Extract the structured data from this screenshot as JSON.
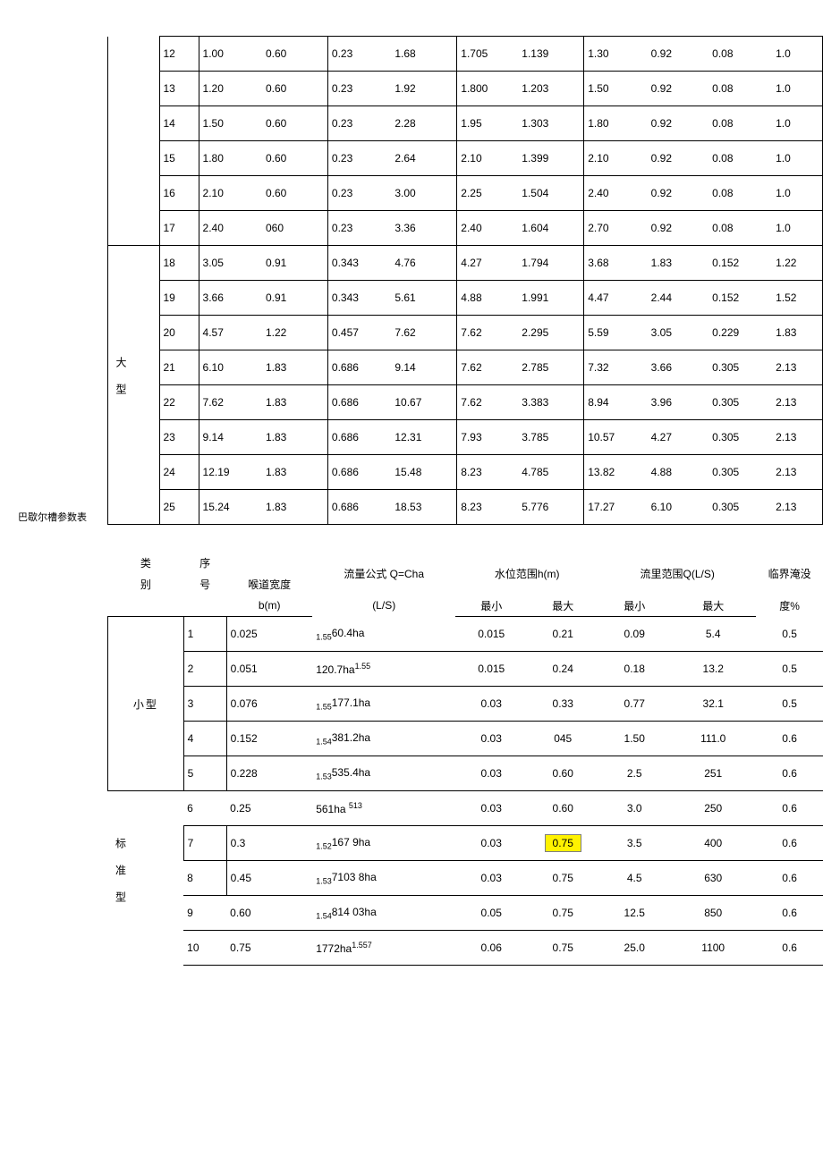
{
  "caption": "巴歇尔槽参数表",
  "table1": {
    "categories": [
      "",
      "大型"
    ],
    "rows": [
      [
        "12",
        "1.00",
        "0.60",
        "0.23",
        "1.68",
        "1.705",
        "1.139",
        "1.30",
        "0.92",
        "0.08",
        "1.0"
      ],
      [
        "13",
        "1.20",
        "0.60",
        "0.23",
        "1.92",
        "1.800",
        "1.203",
        "1.50",
        "0.92",
        "0.08",
        "1.0"
      ],
      [
        "14",
        "1.50",
        "0.60",
        "0.23",
        "2.28",
        "1.95",
        "1.303",
        "1.80",
        "0.92",
        "0.08",
        "1.0"
      ],
      [
        "15",
        "1.80",
        "0.60",
        "0.23",
        "2.64",
        "2.10",
        "1.399",
        "2.10",
        "0.92",
        "0.08",
        "1.0"
      ],
      [
        "16",
        "2.10",
        "0.60",
        "0.23",
        "3.00",
        "2.25",
        "1.504",
        "2.40",
        "0.92",
        "0.08",
        "1.0"
      ],
      [
        "17",
        "2.40",
        "060",
        "0.23",
        "3.36",
        "2.40",
        "1.604",
        "2.70",
        "0.92",
        "0.08",
        "1.0"
      ],
      [
        "18",
        "3.05",
        "0.91",
        "0.343",
        "4.76",
        "4.27",
        "1.794",
        "3.68",
        "1.83",
        "0.152",
        "1.22"
      ],
      [
        "19",
        "3.66",
        "0.91",
        "0.343",
        "5.61",
        "4.88",
        "1.991",
        "4.47",
        "2.44",
        "0.152",
        "1.52"
      ],
      [
        "20",
        "4.57",
        "1.22",
        "0.457",
        "7.62",
        "7.62",
        "2.295",
        "5.59",
        "3.05",
        "0.229",
        "1.83"
      ],
      [
        "21",
        "6.10",
        "1.83",
        "0.686",
        "9.14",
        "7.62",
        "2.785",
        "7.32",
        "3.66",
        "0.305",
        "2.13"
      ],
      [
        "22",
        "7.62",
        "1.83",
        "0.686",
        "10.67",
        "7.62",
        "3.383",
        "8.94",
        "3.96",
        "0.305",
        "2.13"
      ],
      [
        "23",
        "9.14",
        "1.83",
        "0.686",
        "12.31",
        "7.93",
        "3.785",
        "10.57",
        "4.27",
        "0.305",
        "2.13"
      ],
      [
        "24",
        "12.19",
        "1.83",
        "0.686",
        "15.48",
        "8.23",
        "4.785",
        "13.82",
        "4.88",
        "0.305",
        "2.13"
      ],
      [
        "25",
        "15.24",
        "1.83",
        "0.686",
        "18.53",
        "8.23",
        "5.776",
        "17.27",
        "6.10",
        "0.305",
        "2.13"
      ]
    ]
  },
  "table2": {
    "headers": {
      "cat": "类别",
      "seq": "序号",
      "throat": "喉道宽度",
      "throat_unit": "b(m)",
      "formula": "流量公式 Q=Cha",
      "formula_unit": "(L/S)",
      "level": "水位范围h(m)",
      "flow": "流里范围Q(L/S)",
      "min": "最小",
      "max": "最大",
      "crit": "临界淹没",
      "crit_unit": "度%"
    },
    "groups": [
      {
        "label": "小型",
        "span": 5
      },
      {
        "label": "标准型",
        "span": 5
      }
    ],
    "rows": [
      [
        "1",
        "0.025",
        "1.5560.4ha",
        "0.015",
        "0.21",
        "0.09",
        "5.4",
        "0.5"
      ],
      [
        "2",
        "0.051",
        "120.7ha1.55",
        "0.015",
        "0.24",
        "0.18",
        "13.2",
        "0.5"
      ],
      [
        "3",
        "0.076",
        "1.55177.1ha",
        "0.03",
        "0.33",
        "0.77",
        "32.1",
        "0.5"
      ],
      [
        "4",
        "0.152",
        "1.54381.2ha",
        "0.03",
        "045",
        "1.50",
        "111.0",
        "0.6"
      ],
      [
        "5",
        "0.228",
        "1.53535.4ha",
        "0.03",
        "0.60",
        "2.5",
        "251",
        "0.6"
      ],
      [
        "6",
        "0.25",
        "561ha 513",
        "0.03",
        "0.60",
        "3.0",
        "250",
        "0.6"
      ],
      [
        "7",
        "0.3",
        "1.52167 9ha",
        "0.03",
        "0.75",
        "3.5",
        "400",
        "0.6"
      ],
      [
        "8",
        "0.45",
        "1.537103 8ha",
        "0.03",
        "0.75",
        "4.5",
        "630",
        "0.6"
      ],
      [
        "9",
        "0.60",
        "1.54814 03ha",
        "0.05",
        "0.75",
        "12.5",
        "850",
        "0.6"
      ],
      [
        "10",
        "0.75",
        "1772ha1.557",
        "0.06",
        "0.75",
        "25.0",
        "1100",
        "0.6"
      ]
    ],
    "highlight_row": 6,
    "highlight_col": 4
  }
}
